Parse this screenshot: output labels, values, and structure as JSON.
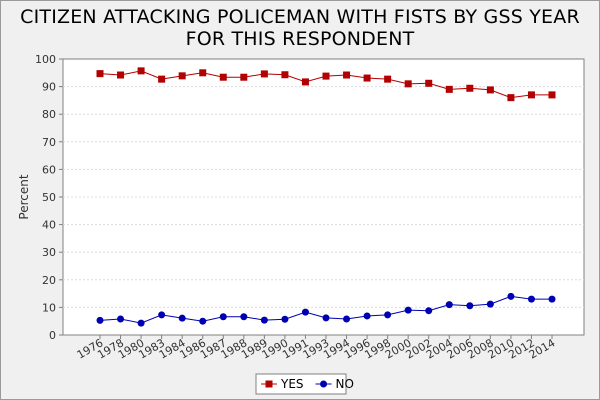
{
  "chart_data": {
    "type": "line",
    "title_lines": [
      "CITIZEN ATTACKING POLICEMAN WITH FISTS BY GSS YEAR",
      "FOR THIS RESPONDENT"
    ],
    "xlabel": "",
    "ylabel": "Percent",
    "ylim": [
      0,
      100
    ],
    "yticks": [
      0,
      10,
      20,
      30,
      40,
      50,
      60,
      70,
      80,
      90,
      100
    ],
    "grid": true,
    "legend_position": "bottom",
    "categories": [
      "1976",
      "1978",
      "1980",
      "1983",
      "1984",
      "1986",
      "1987",
      "1988",
      "1989",
      "1990",
      "1991",
      "1993",
      "1994",
      "1996",
      "1998",
      "2000",
      "2002",
      "2004",
      "2006",
      "2008",
      "2010",
      "2012",
      "2014"
    ],
    "series": [
      {
        "name": "YES",
        "color": "#b30000",
        "marker": "square",
        "values": [
          94.7,
          94.2,
          95.7,
          92.7,
          93.9,
          95.0,
          93.4,
          93.4,
          94.6,
          94.3,
          91.7,
          93.8,
          94.2,
          93.1,
          92.7,
          91.0,
          91.2,
          89.0,
          89.4,
          88.8,
          86.0,
          87.0,
          87.0
        ]
      },
      {
        "name": "NO",
        "color": "#0000b3",
        "marker": "circle",
        "values": [
          5.3,
          5.8,
          4.3,
          7.3,
          6.1,
          5.0,
          6.6,
          6.6,
          5.4,
          5.7,
          8.3,
          6.2,
          5.8,
          6.9,
          7.3,
          9.0,
          8.8,
          11.0,
          10.6,
          11.2,
          14.0,
          13.0,
          13.0
        ]
      }
    ]
  }
}
